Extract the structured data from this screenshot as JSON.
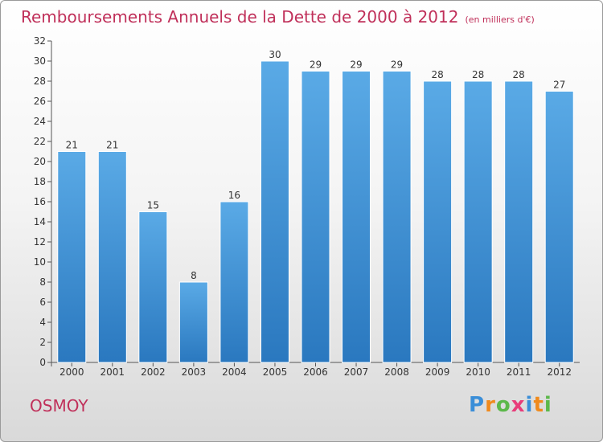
{
  "header": {
    "title": "Remboursements Annuels de la Dette de 2000 à 2012",
    "unit": "(en milliers d'€)"
  },
  "footer": {
    "place": "OSMOY",
    "logo_letters": [
      "P",
      "r",
      "o",
      "x",
      "i",
      "t",
      "i"
    ],
    "logo_colors": [
      "#3a8ed8",
      "#f08a1c",
      "#5cb84a",
      "#e83c7a",
      "#3a8ed8",
      "#f08a1c",
      "#5cb84a"
    ]
  },
  "colors": {
    "bar_top": "#5aaae6",
    "bar_bottom": "#2a78bf",
    "axis": "#555555",
    "title": "#c0305a"
  },
  "chart_data": {
    "type": "bar",
    "title": "Remboursements Annuels de la Dette de 2000 à 2012",
    "subtitle": "(en milliers d'€)",
    "xlabel": "",
    "ylabel": "",
    "categories": [
      "2000",
      "2001",
      "2002",
      "2003",
      "2004",
      "2005",
      "2006",
      "2007",
      "2008",
      "2009",
      "2010",
      "2011",
      "2012"
    ],
    "values": [
      21,
      21,
      15,
      8,
      16,
      30,
      29,
      29,
      29,
      28,
      28,
      28,
      27
    ],
    "ylim": [
      0,
      32
    ],
    "yticks": [
      0,
      2,
      4,
      6,
      8,
      10,
      12,
      14,
      16,
      18,
      20,
      22,
      24,
      26,
      28,
      30,
      32
    ],
    "grid": false,
    "legend": "none"
  }
}
